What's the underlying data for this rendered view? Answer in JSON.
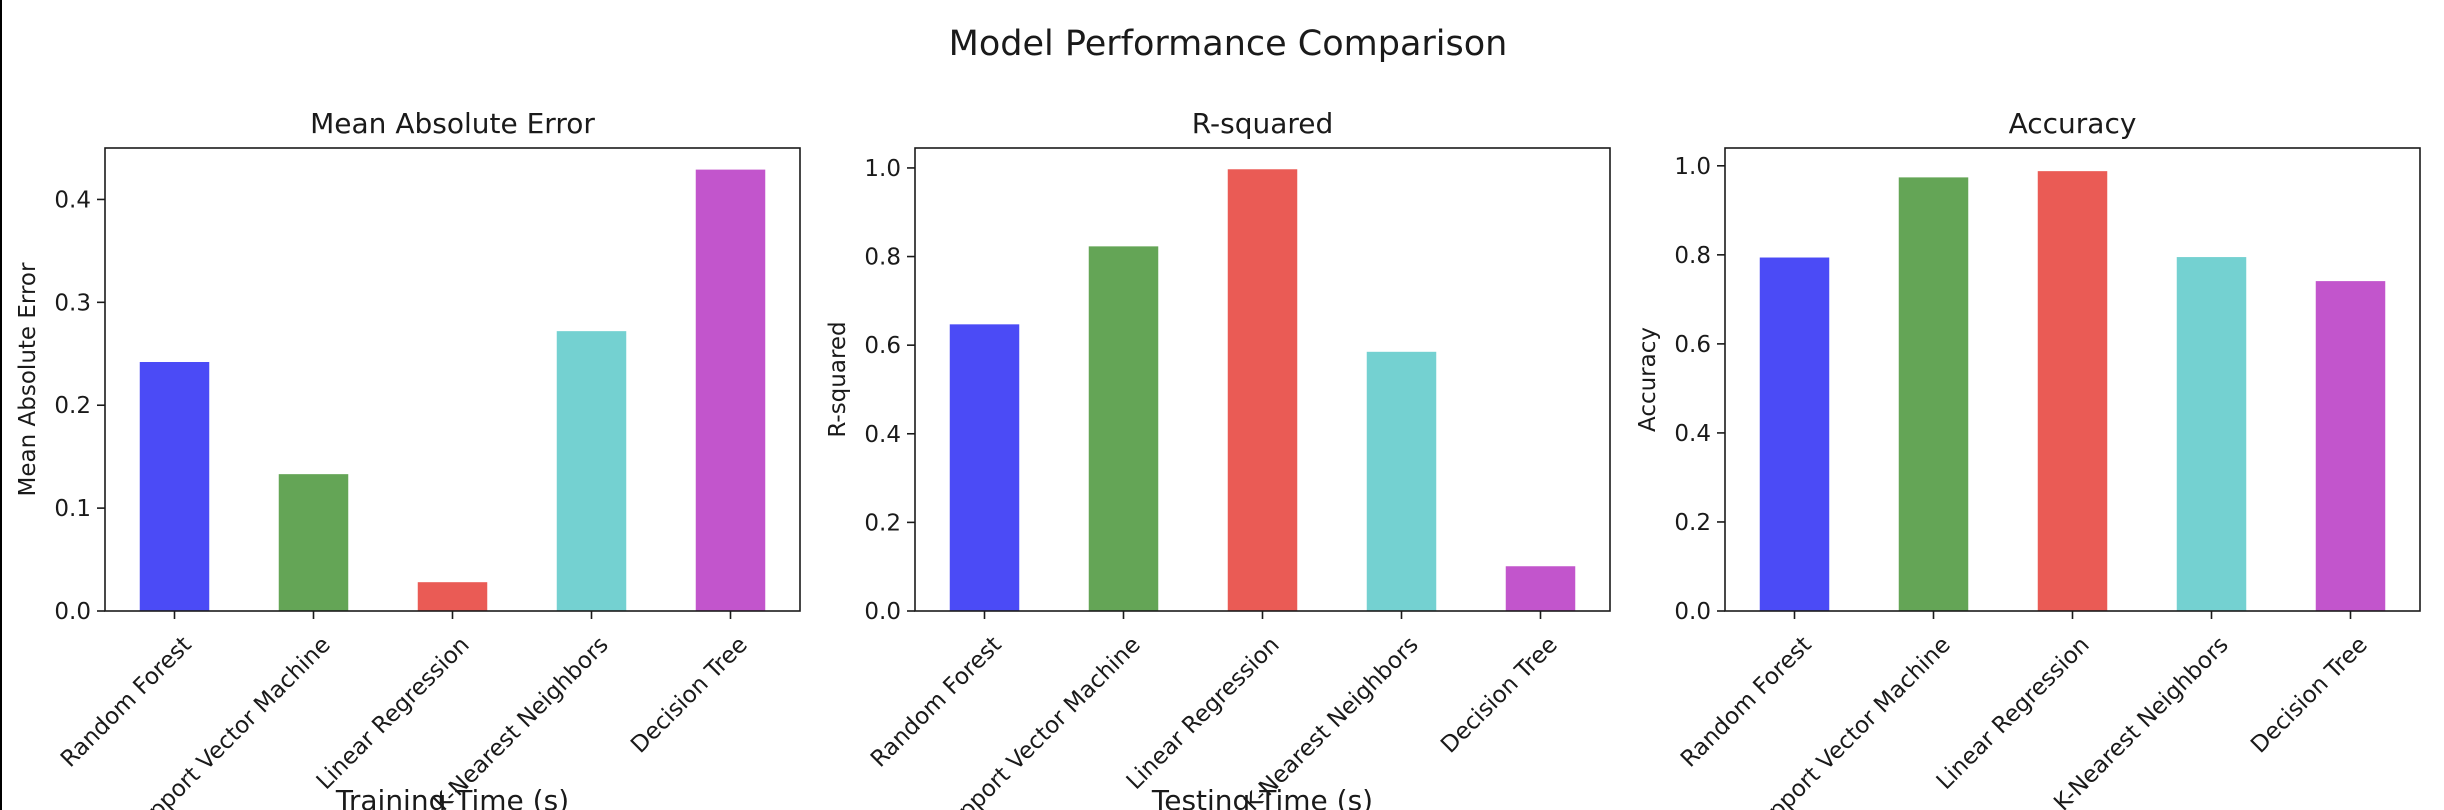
{
  "figure_title": "Model Performance Comparison",
  "colors": {
    "bars": [
      "#4b4bf6",
      "#64a556",
      "#ea5b55",
      "#74d1d1",
      "#c255cc"
    ],
    "axes": "#1a1a1a"
  },
  "chart_data": [
    {
      "type": "bar",
      "title": "Mean Absolute Error",
      "ylabel": "Mean Absolute Error",
      "xlabel": "Training Time (s)",
      "categories": [
        "Random Forest",
        "Support Vector Machine",
        "Linear Regression",
        "K-Nearest Neighbors",
        "Decision Tree"
      ],
      "values": [
        0.242,
        0.133,
        0.028,
        0.272,
        0.429
      ],
      "ylim": [
        0,
        0.45
      ],
      "yticks": [
        "0.0",
        "0.1",
        "0.2",
        "0.3",
        "0.4"
      ],
      "grid": false
    },
    {
      "type": "bar",
      "title": "R-squared",
      "ylabel": "R-squared",
      "xlabel": "Testing Time (s)",
      "categories": [
        "Random Forest",
        "Support Vector Machine",
        "Linear Regression",
        "K-Nearest Neighbors",
        "Decision Tree"
      ],
      "values": [
        0.647,
        0.823,
        0.997,
        0.585,
        0.101
      ],
      "ylim": [
        0,
        1.045
      ],
      "yticks": [
        "0.0",
        "0.2",
        "0.4",
        "0.6",
        "0.8",
        "1.0"
      ],
      "grid": false
    },
    {
      "type": "bar",
      "title": "Accuracy",
      "ylabel": "Accuracy",
      "xlabel": "",
      "categories": [
        "Random Forest",
        "Support Vector Machine",
        "Linear Regression",
        "K-Nearest Neighbors",
        "Decision Tree"
      ],
      "values": [
        0.794,
        0.974,
        0.988,
        0.795,
        0.741
      ],
      "ylim": [
        0,
        1.04
      ],
      "yticks": [
        "0.0",
        "0.2",
        "0.4",
        "0.6",
        "0.8",
        "1.0"
      ],
      "grid": false
    }
  ]
}
